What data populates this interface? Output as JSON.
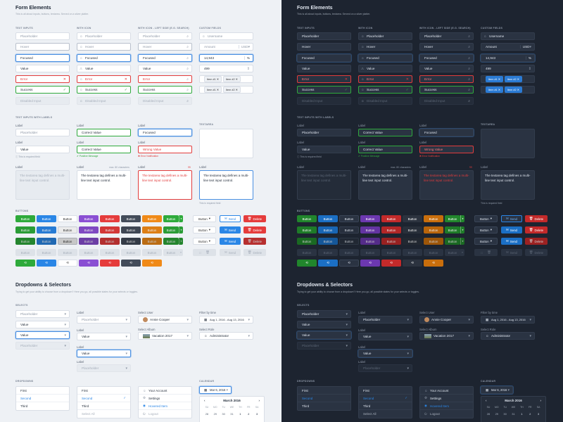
{
  "themes": {
    "light": {
      "title": "Form Elements",
      "subtitle": "This is all about inputs, buttons, textarea. Served on a silver platter."
    },
    "dark": {
      "title": "Form Elements",
      "subtitle": "This is all about inputs, buttons, textarea. Served on a silver platter."
    }
  },
  "sections": {
    "text_inputs": "TEXT INPUTS",
    "with_icon": "WITH ICON",
    "with_icon_left": "WITH ICON - LEFT SIDE (E.G. SEARCH)",
    "custom_fields": "CUSTOM FIELDS",
    "with_labels": "TEXT INPUTS WITH LABELS",
    "textarea": "TEXTAREA",
    "buttons": "BUTTONS",
    "dropdowns_title": "Dropdowns & Selectors",
    "dropdowns_sub": "Trying to get your ability to choose from a dropdown? Here you go, all possible states for your selects or toggles.",
    "selects": "SELECTS",
    "dropdowns": "DROPDOWNS",
    "calendar": "CALENDAR"
  },
  "inputs": {
    "placeholder": "Placeholder",
    "hover": "Hover",
    "focused": "Focused",
    "value": "Value",
    "error": "Error",
    "success": "Success",
    "disabled": "Disabled Input"
  },
  "custom": {
    "username": "Username",
    "amount": "Amount",
    "currency": "USD",
    "number": "14,943",
    "percent": "%",
    "stepper": "499",
    "item1": "Item #1",
    "item2": "Item #2"
  },
  "labeled": {
    "label": "Label",
    "placeholder": "Placeholder",
    "correct": "Correct Value",
    "focused": "Focused",
    "value": "Value",
    "wrong": "Wrong Value",
    "required": "This is required field",
    "positive": "Positive Message",
    "error_note": "Error Notification",
    "textarea_text": "The textarea tag defines a multi-line text input control.",
    "counter": "max. 80 characters",
    "counter_err": "99"
  },
  "buttons": {
    "button": "Button",
    "send": "Send",
    "delete": "Delete"
  },
  "selects": {
    "placeholder": "Placeholder",
    "value": "Value",
    "select_user": "Select User",
    "user": "Annie Cooper",
    "select_album": "Select Album",
    "album": "Vacation 2017",
    "filter": "Filter by time",
    "date_range": "Aug 1, 2016 - Aug 13, 2016",
    "select_role": "Select Role",
    "role": "Administrator",
    "label": "Label"
  },
  "dropdown_lists": {
    "first": "First",
    "second": "Second",
    "third": "Third",
    "select_all": "Select All",
    "my_account": "Your Account",
    "settings": "Settings",
    "hovered": "Hovered Item",
    "logout": "Logout"
  },
  "calendar": {
    "date": "Mar 6, 2016",
    "month": "March 2016",
    "weekdays": [
      "SU",
      "MO",
      "TU",
      "WE",
      "TH",
      "FR",
      "SA"
    ],
    "row1": [
      "28",
      "29",
      "30",
      "31",
      "1",
      "2",
      "3"
    ]
  },
  "colors": {
    "green": "#2eaa3b",
    "blue": "#2a86e6",
    "purple": "#8a4fd3",
    "red": "#e53c3c",
    "dark": "#434c5a",
    "orange": "#f08a18",
    "dark_bg": "#1d2430",
    "light_bg": "#eef1f5"
  }
}
